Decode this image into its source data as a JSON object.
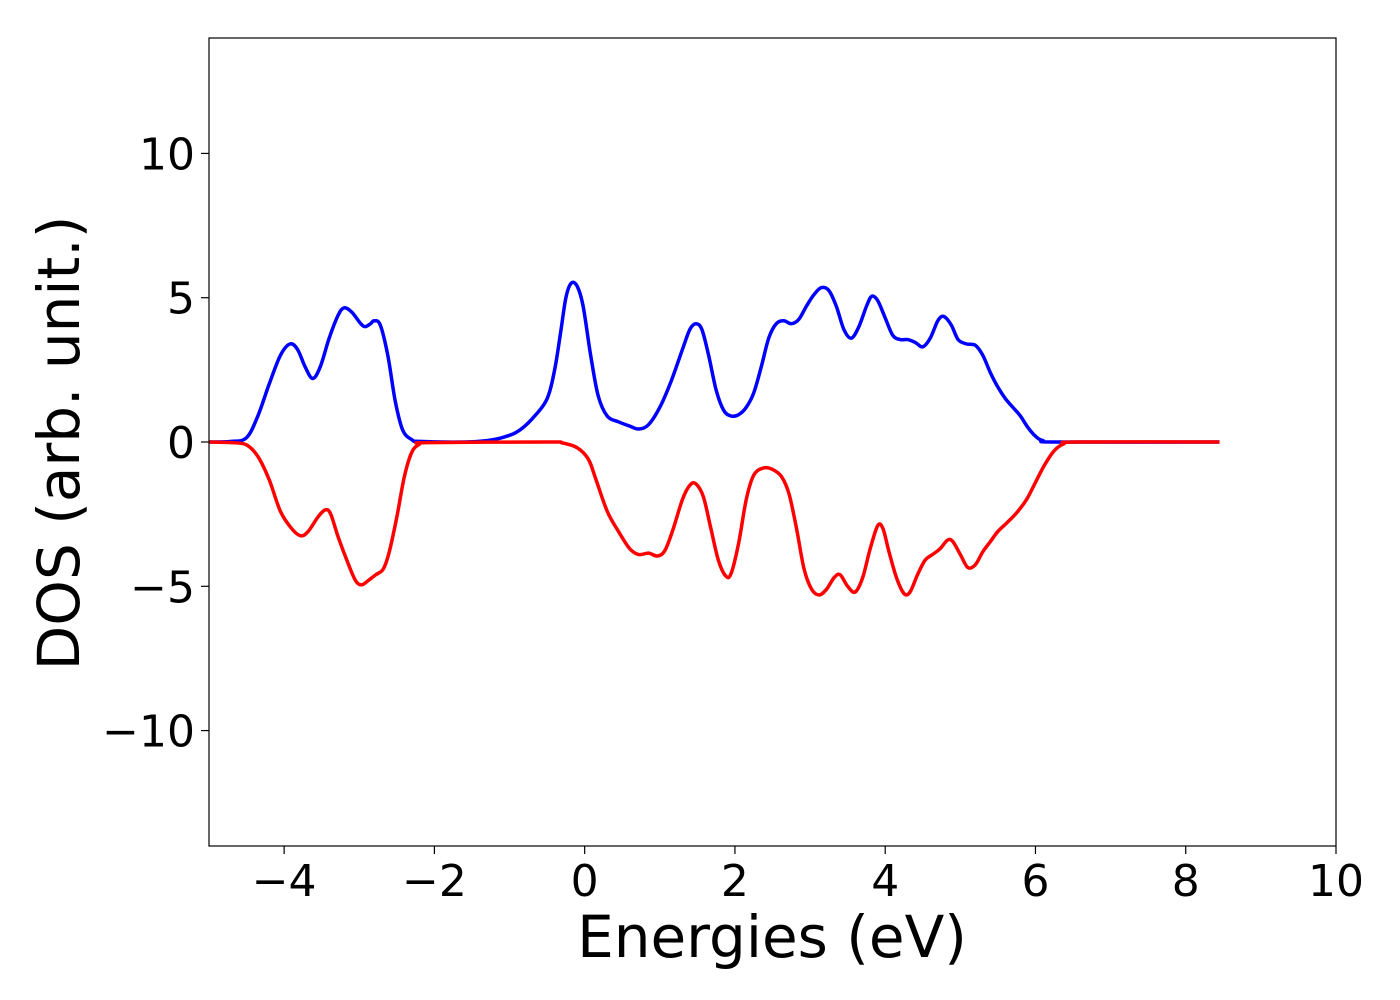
{
  "chart_data": {
    "type": "line",
    "title": "",
    "xlabel": "Energies (eV)",
    "ylabel": "DOS (arb. unit.)",
    "xlim": [
      -5,
      10
    ],
    "ylim": [
      -14,
      14
    ],
    "xticks": [
      -4,
      -2,
      0,
      2,
      4,
      6,
      8,
      10
    ],
    "yticks": [
      -10,
      -5,
      0,
      5,
      10
    ],
    "xtick_labels": [
      "−4",
      "−2",
      "0",
      "2",
      "4",
      "6",
      "8",
      "10"
    ],
    "ytick_labels": [
      "−10",
      "−5",
      "0",
      "5",
      "10"
    ],
    "grid": false,
    "legend": false,
    "series": [
      {
        "color": "#0000ff",
        "points": [
          [
            -5.0,
            0.0
          ],
          [
            -4.7,
            0.02
          ],
          [
            -4.5,
            0.15
          ],
          [
            -4.35,
            0.9
          ],
          [
            -4.2,
            2.0
          ],
          [
            -4.05,
            3.0
          ],
          [
            -3.92,
            3.4
          ],
          [
            -3.82,
            3.2
          ],
          [
            -3.72,
            2.6
          ],
          [
            -3.62,
            2.2
          ],
          [
            -3.52,
            2.6
          ],
          [
            -3.4,
            3.6
          ],
          [
            -3.28,
            4.4
          ],
          [
            -3.2,
            4.65
          ],
          [
            -3.1,
            4.5
          ],
          [
            -2.98,
            4.1
          ],
          [
            -2.92,
            4.0
          ],
          [
            -2.85,
            4.1
          ],
          [
            -2.8,
            4.2
          ],
          [
            -2.72,
            4.05
          ],
          [
            -2.62,
            3.0
          ],
          [
            -2.52,
            1.4
          ],
          [
            -2.42,
            0.4
          ],
          [
            -2.3,
            0.08
          ],
          [
            -2.2,
            0.02
          ],
          [
            -1.6,
            0.0
          ],
          [
            -1.3,
            0.05
          ],
          [
            -1.1,
            0.15
          ],
          [
            -0.9,
            0.35
          ],
          [
            -0.7,
            0.8
          ],
          [
            -0.5,
            1.5
          ],
          [
            -0.4,
            2.5
          ],
          [
            -0.32,
            3.8
          ],
          [
            -0.25,
            5.0
          ],
          [
            -0.18,
            5.5
          ],
          [
            -0.1,
            5.4
          ],
          [
            -0.02,
            4.7
          ],
          [
            0.08,
            3.0
          ],
          [
            0.18,
            1.6
          ],
          [
            0.3,
            0.9
          ],
          [
            0.45,
            0.7
          ],
          [
            0.6,
            0.55
          ],
          [
            0.72,
            0.45
          ],
          [
            0.85,
            0.6
          ],
          [
            1.0,
            1.2
          ],
          [
            1.15,
            2.1
          ],
          [
            1.3,
            3.2
          ],
          [
            1.4,
            3.9
          ],
          [
            1.48,
            4.1
          ],
          [
            1.56,
            3.9
          ],
          [
            1.65,
            3.0
          ],
          [
            1.75,
            1.8
          ],
          [
            1.85,
            1.1
          ],
          [
            1.95,
            0.9
          ],
          [
            2.05,
            0.95
          ],
          [
            2.15,
            1.2
          ],
          [
            2.25,
            1.7
          ],
          [
            2.35,
            2.6
          ],
          [
            2.45,
            3.6
          ],
          [
            2.55,
            4.1
          ],
          [
            2.65,
            4.2
          ],
          [
            2.75,
            4.1
          ],
          [
            2.85,
            4.25
          ],
          [
            2.95,
            4.7
          ],
          [
            3.05,
            5.1
          ],
          [
            3.15,
            5.35
          ],
          [
            3.25,
            5.25
          ],
          [
            3.35,
            4.7
          ],
          [
            3.45,
            3.9
          ],
          [
            3.55,
            3.6
          ],
          [
            3.65,
            4.0
          ],
          [
            3.75,
            4.7
          ],
          [
            3.82,
            5.05
          ],
          [
            3.9,
            4.9
          ],
          [
            4.0,
            4.3
          ],
          [
            4.1,
            3.7
          ],
          [
            4.2,
            3.55
          ],
          [
            4.3,
            3.55
          ],
          [
            4.4,
            3.45
          ],
          [
            4.5,
            3.3
          ],
          [
            4.6,
            3.6
          ],
          [
            4.7,
            4.2
          ],
          [
            4.78,
            4.35
          ],
          [
            4.88,
            4.05
          ],
          [
            4.97,
            3.55
          ],
          [
            5.08,
            3.4
          ],
          [
            5.2,
            3.35
          ],
          [
            5.3,
            3.0
          ],
          [
            5.4,
            2.4
          ],
          [
            5.5,
            1.9
          ],
          [
            5.6,
            1.5
          ],
          [
            5.7,
            1.2
          ],
          [
            5.8,
            0.9
          ],
          [
            5.9,
            0.5
          ],
          [
            6.0,
            0.2
          ],
          [
            6.1,
            0.05
          ],
          [
            6.3,
            0.0
          ],
          [
            8.45,
            0.0
          ]
        ]
      },
      {
        "color": "#ff0000",
        "points": [
          [
            -5.0,
            0.0
          ],
          [
            -4.7,
            -0.02
          ],
          [
            -4.5,
            -0.1
          ],
          [
            -4.35,
            -0.5
          ],
          [
            -4.2,
            -1.3
          ],
          [
            -4.05,
            -2.4
          ],
          [
            -3.9,
            -3.0
          ],
          [
            -3.78,
            -3.25
          ],
          [
            -3.68,
            -3.1
          ],
          [
            -3.55,
            -2.6
          ],
          [
            -3.45,
            -2.35
          ],
          [
            -3.38,
            -2.5
          ],
          [
            -3.28,
            -3.3
          ],
          [
            -3.15,
            -4.2
          ],
          [
            -3.05,
            -4.8
          ],
          [
            -2.97,
            -4.95
          ],
          [
            -2.88,
            -4.8
          ],
          [
            -2.78,
            -4.6
          ],
          [
            -2.68,
            -4.4
          ],
          [
            -2.6,
            -3.8
          ],
          [
            -2.5,
            -2.6
          ],
          [
            -2.4,
            -1.2
          ],
          [
            -2.3,
            -0.35
          ],
          [
            -2.2,
            -0.08
          ],
          [
            -2.1,
            -0.02
          ],
          [
            -0.5,
            0.0
          ],
          [
            -0.3,
            -0.03
          ],
          [
            -0.1,
            -0.2
          ],
          [
            0.05,
            -0.6
          ],
          [
            0.15,
            -1.3
          ],
          [
            0.3,
            -2.4
          ],
          [
            0.45,
            -3.1
          ],
          [
            0.6,
            -3.7
          ],
          [
            0.72,
            -3.9
          ],
          [
            0.85,
            -3.85
          ],
          [
            0.97,
            -3.95
          ],
          [
            1.07,
            -3.75
          ],
          [
            1.18,
            -3.0
          ],
          [
            1.3,
            -2.0
          ],
          [
            1.4,
            -1.5
          ],
          [
            1.48,
            -1.45
          ],
          [
            1.58,
            -1.9
          ],
          [
            1.68,
            -3.0
          ],
          [
            1.78,
            -4.1
          ],
          [
            1.88,
            -4.65
          ],
          [
            1.95,
            -4.55
          ],
          [
            2.05,
            -3.5
          ],
          [
            2.15,
            -2.0
          ],
          [
            2.25,
            -1.15
          ],
          [
            2.38,
            -0.9
          ],
          [
            2.5,
            -0.95
          ],
          [
            2.62,
            -1.2
          ],
          [
            2.72,
            -1.8
          ],
          [
            2.82,
            -3.0
          ],
          [
            2.92,
            -4.4
          ],
          [
            3.02,
            -5.1
          ],
          [
            3.12,
            -5.3
          ],
          [
            3.22,
            -5.1
          ],
          [
            3.32,
            -4.7
          ],
          [
            3.4,
            -4.6
          ],
          [
            3.5,
            -5.0
          ],
          [
            3.6,
            -5.2
          ],
          [
            3.7,
            -4.7
          ],
          [
            3.8,
            -3.7
          ],
          [
            3.9,
            -2.9
          ],
          [
            3.97,
            -3.0
          ],
          [
            4.05,
            -3.8
          ],
          [
            4.15,
            -4.7
          ],
          [
            4.25,
            -5.25
          ],
          [
            4.33,
            -5.2
          ],
          [
            4.43,
            -4.6
          ],
          [
            4.53,
            -4.1
          ],
          [
            4.63,
            -3.9
          ],
          [
            4.73,
            -3.7
          ],
          [
            4.83,
            -3.4
          ],
          [
            4.9,
            -3.45
          ],
          [
            5.0,
            -3.9
          ],
          [
            5.1,
            -4.35
          ],
          [
            5.2,
            -4.25
          ],
          [
            5.3,
            -3.8
          ],
          [
            5.4,
            -3.45
          ],
          [
            5.5,
            -3.1
          ],
          [
            5.62,
            -2.8
          ],
          [
            5.75,
            -2.45
          ],
          [
            5.88,
            -2.0
          ],
          [
            6.0,
            -1.4
          ],
          [
            6.12,
            -0.8
          ],
          [
            6.25,
            -0.3
          ],
          [
            6.38,
            -0.06
          ],
          [
            6.55,
            0.0
          ],
          [
            8.45,
            0.0
          ]
        ]
      }
    ]
  }
}
